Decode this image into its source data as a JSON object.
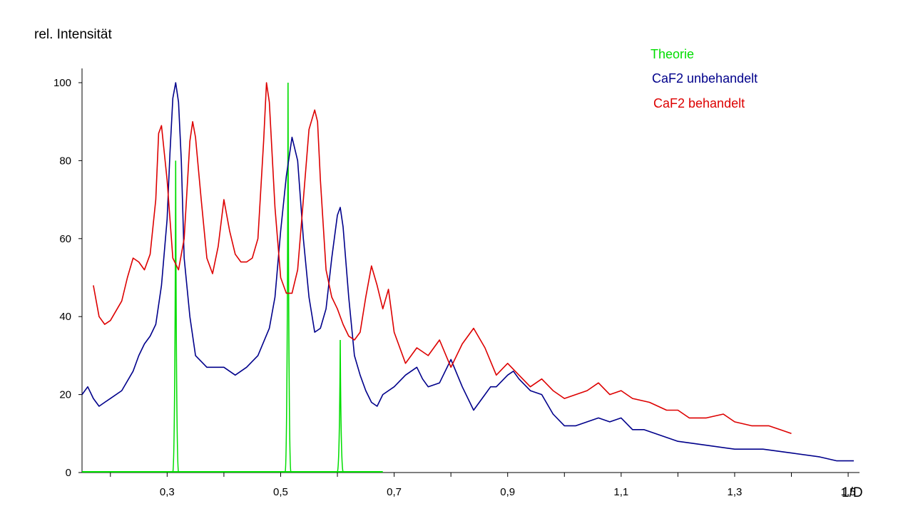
{
  "chart_data": {
    "type": "line",
    "ylabel": "rel. Intensität",
    "xlabel": "1/D",
    "xlim": [
      0.15,
      1.52
    ],
    "ylim": [
      0,
      100
    ],
    "x_ticks": [
      0.3,
      0.5,
      0.7,
      0.9,
      1.1,
      1.3,
      1.5
    ],
    "x_tick_labels": [
      "0,3",
      "0,5",
      "0,7",
      "0,9",
      "1,1",
      "1,3",
      "1,5"
    ],
    "y_ticks": [
      0,
      20,
      40,
      60,
      80,
      100
    ],
    "y_tick_labels": [
      "0",
      "20",
      "40",
      "60",
      "80",
      "100"
    ],
    "grid": false,
    "legend_position": "top-right",
    "colors": {
      "theorie": "#00dd00",
      "unbehandelt": "#00008b",
      "behandelt": "#dd0000"
    },
    "series": [
      {
        "name": "Theorie",
        "color": "#00dd00",
        "type": "stick",
        "x": [
          0.315,
          0.513,
          0.605
        ],
        "y": [
          80,
          100,
          34
        ],
        "xrange": [
          0.15,
          0.68
        ]
      },
      {
        "name": "CaF2 unbehandelt",
        "color": "#00008b",
        "x": [
          0.15,
          0.16,
          0.17,
          0.18,
          0.19,
          0.2,
          0.22,
          0.24,
          0.25,
          0.26,
          0.27,
          0.28,
          0.29,
          0.3,
          0.305,
          0.31,
          0.315,
          0.32,
          0.325,
          0.33,
          0.34,
          0.35,
          0.37,
          0.4,
          0.42,
          0.44,
          0.46,
          0.48,
          0.49,
          0.5,
          0.51,
          0.52,
          0.53,
          0.54,
          0.55,
          0.56,
          0.57,
          0.58,
          0.59,
          0.6,
          0.605,
          0.61,
          0.62,
          0.63,
          0.64,
          0.65,
          0.66,
          0.67,
          0.68,
          0.7,
          0.72,
          0.74,
          0.75,
          0.76,
          0.78,
          0.8,
          0.82,
          0.84,
          0.86,
          0.87,
          0.88,
          0.9,
          0.91,
          0.92,
          0.94,
          0.96,
          0.98,
          1.0,
          1.02,
          1.04,
          1.06,
          1.08,
          1.1,
          1.12,
          1.14,
          1.16,
          1.18,
          1.2,
          1.25,
          1.3,
          1.35,
          1.4,
          1.45,
          1.48,
          1.51
        ],
        "y": [
          20,
          22,
          19,
          17,
          18,
          19,
          21,
          26,
          30,
          33,
          35,
          38,
          48,
          65,
          82,
          96,
          100,
          95,
          80,
          55,
          40,
          30,
          27,
          27,
          25,
          27,
          30,
          37,
          45,
          62,
          76,
          86,
          80,
          60,
          45,
          36,
          37,
          42,
          55,
          66,
          68,
          63,
          45,
          30,
          25,
          21,
          18,
          17,
          20,
          22,
          25,
          27,
          24,
          22,
          23,
          29,
          22,
          16,
          20,
          22,
          22,
          25,
          26,
          24,
          21,
          20,
          15,
          12,
          12,
          13,
          14,
          13,
          14,
          11,
          11,
          10,
          9,
          8,
          7,
          6,
          6,
          5,
          4,
          3,
          3
        ]
      },
      {
        "name": "CaF2 behandelt",
        "color": "#dd0000",
        "x": [
          0.17,
          0.175,
          0.18,
          0.19,
          0.2,
          0.22,
          0.23,
          0.24,
          0.25,
          0.26,
          0.27,
          0.28,
          0.285,
          0.29,
          0.3,
          0.31,
          0.32,
          0.33,
          0.34,
          0.345,
          0.35,
          0.36,
          0.37,
          0.38,
          0.39,
          0.4,
          0.41,
          0.42,
          0.43,
          0.44,
          0.45,
          0.46,
          0.47,
          0.475,
          0.48,
          0.49,
          0.5,
          0.51,
          0.52,
          0.53,
          0.54,
          0.55,
          0.56,
          0.565,
          0.57,
          0.58,
          0.59,
          0.6,
          0.61,
          0.62,
          0.63,
          0.64,
          0.65,
          0.66,
          0.67,
          0.68,
          0.69,
          0.7,
          0.72,
          0.74,
          0.76,
          0.78,
          0.8,
          0.82,
          0.84,
          0.86,
          0.88,
          0.9,
          0.92,
          0.94,
          0.96,
          0.98,
          1.0,
          1.02,
          1.04,
          1.06,
          1.08,
          1.1,
          1.12,
          1.15,
          1.18,
          1.2,
          1.22,
          1.25,
          1.28,
          1.3,
          1.33,
          1.36,
          1.38,
          1.4
        ],
        "y": [
          48,
          44,
          40,
          38,
          39,
          44,
          50,
          55,
          54,
          52,
          56,
          70,
          87,
          89,
          75,
          55,
          52,
          60,
          85,
          90,
          86,
          70,
          55,
          51,
          58,
          70,
          62,
          56,
          54,
          54,
          55,
          60,
          85,
          100,
          95,
          68,
          50,
          46,
          46,
          52,
          70,
          88,
          93,
          90,
          75,
          52,
          45,
          42,
          38,
          35,
          34,
          36,
          45,
          53,
          48,
          42,
          47,
          36,
          28,
          32,
          30,
          34,
          27,
          33,
          37,
          32,
          25,
          28,
          25,
          22,
          24,
          21,
          19,
          20,
          21,
          23,
          20,
          21,
          19,
          18,
          16,
          16,
          14,
          14,
          15,
          13,
          12,
          12,
          11,
          10
        ]
      }
    ]
  }
}
